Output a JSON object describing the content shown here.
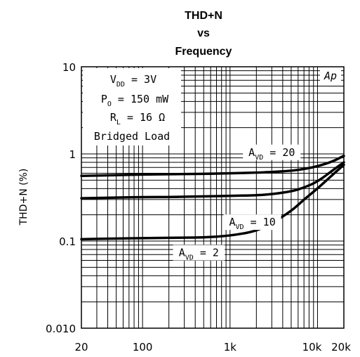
{
  "chart_data": {
    "type": "line",
    "title_lines": [
      "THD+N",
      "vs",
      "Frequency"
    ],
    "ylabel": "THD+N (%)",
    "xlabel": "",
    "x_scale": "log",
    "y_scale": "log",
    "xlim": [
      20,
      20000
    ],
    "ylim": [
      0.01,
      10
    ],
    "grid": true,
    "x_ticks": [
      {
        "value": 20,
        "label": "20"
      },
      {
        "value": 100,
        "label": "100"
      },
      {
        "value": 1000,
        "label": "1k"
      },
      {
        "value": 10000,
        "label": "10k"
      },
      {
        "value": 20000,
        "label": "20k"
      }
    ],
    "y_ticks": [
      {
        "value": 10,
        "label": "10"
      },
      {
        "value": 1,
        "label": "1"
      },
      {
        "value": 0.1,
        "label": "0.1"
      },
      {
        "value": 0.01,
        "label": "0.010"
      }
    ],
    "conditions": {
      "vdd": {
        "prefix": "V",
        "sub": "DD",
        "rest": " = 3V"
      },
      "po": {
        "prefix": "P",
        "sub": "O",
        "rest": " = 150 mW"
      },
      "rl": {
        "prefix": "R",
        "sub": "L",
        "rest": " = 16 Ω"
      },
      "load": "Bridged Load"
    },
    "watermark": "Ap",
    "series": [
      {
        "label_prefix": "A",
        "label_sub": "VD",
        "label_rest": " = 20",
        "label_at": [
          3000,
          0.95
        ],
        "x": [
          20,
          50,
          100,
          200,
          500,
          1000,
          2000,
          3000,
          5000,
          7000,
          10000,
          15000,
          20000
        ],
        "y": [
          0.56,
          0.57,
          0.58,
          0.585,
          0.59,
          0.6,
          0.61,
          0.62,
          0.64,
          0.67,
          0.72,
          0.82,
          0.95
        ]
      },
      {
        "label_prefix": "A",
        "label_sub": "VD",
        "label_rest": " = 10",
        "label_at": [
          1800,
          0.15
        ],
        "x": [
          20,
          50,
          100,
          200,
          500,
          1000,
          2000,
          3000,
          5000,
          7000,
          10000,
          15000,
          20000
        ],
        "y": [
          0.31,
          0.315,
          0.32,
          0.32,
          0.325,
          0.33,
          0.335,
          0.345,
          0.37,
          0.41,
          0.48,
          0.65,
          0.8
        ]
      },
      {
        "label_prefix": "A",
        "label_sub": "VD",
        "label_rest": " = 2",
        "label_at": [
          440,
          0.067
        ],
        "x": [
          20,
          50,
          100,
          200,
          500,
          1000,
          2000,
          3000,
          5000,
          7000,
          10000,
          15000,
          20000
        ],
        "y": [
          0.105,
          0.107,
          0.108,
          0.109,
          0.11,
          0.115,
          0.13,
          0.16,
          0.22,
          0.3,
          0.4,
          0.58,
          0.75
        ]
      }
    ]
  }
}
